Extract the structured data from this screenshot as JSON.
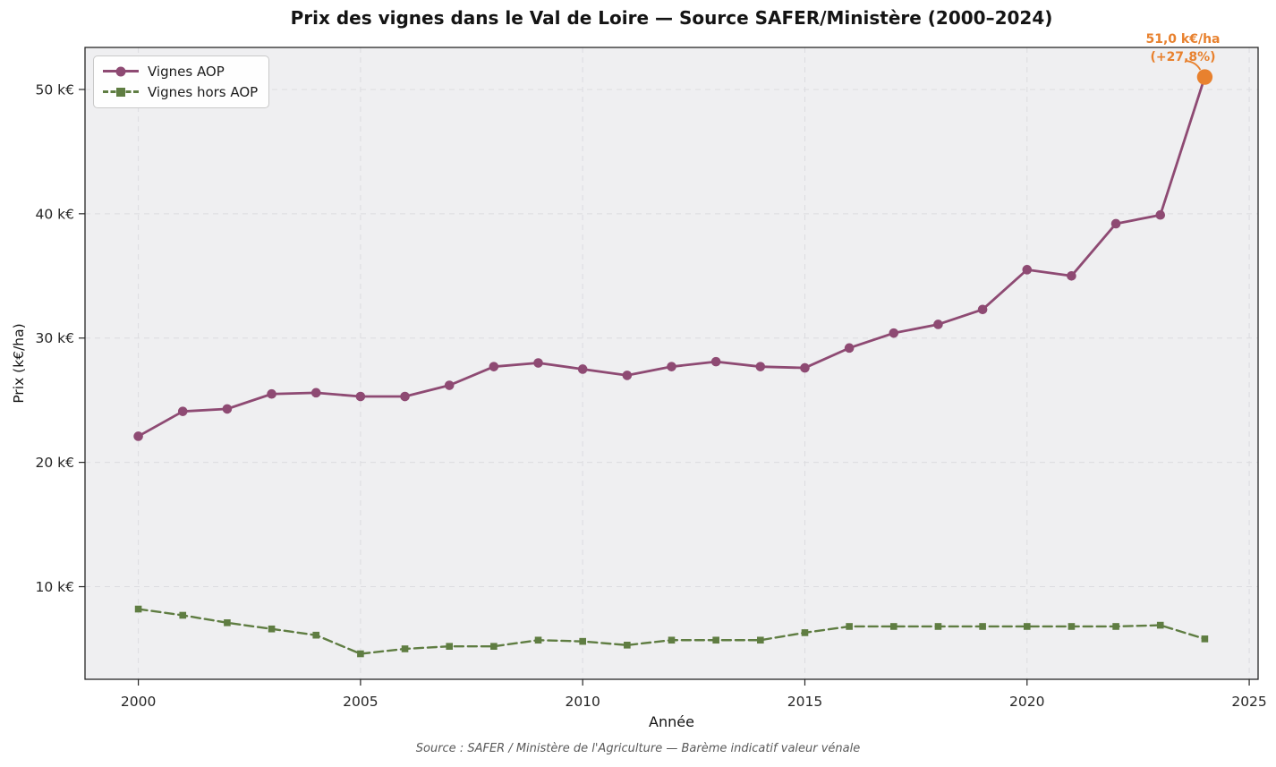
{
  "chart_data": {
    "type": "line",
    "title": "Prix des vignes dans le Val de Loire — Source SAFER/Ministère (2000–2024)",
    "xlabel": "Année",
    "ylabel": "Prix (k€/ha)",
    "x": [
      2000,
      2001,
      2002,
      2003,
      2004,
      2005,
      2006,
      2007,
      2008,
      2009,
      2010,
      2011,
      2012,
      2013,
      2014,
      2015,
      2016,
      2017,
      2018,
      2019,
      2020,
      2021,
      2022,
      2023,
      2024
    ],
    "series": [
      {
        "name": "Vignes AOP",
        "color": "#8e4a73",
        "marker": "circle",
        "linestyle": "solid",
        "values": [
          22.1,
          24.1,
          24.3,
          25.5,
          25.6,
          25.3,
          25.3,
          26.2,
          27.7,
          28.0,
          27.5,
          27.0,
          27.7,
          28.1,
          27.7,
          27.6,
          29.2,
          30.4,
          31.1,
          32.3,
          35.5,
          35.0,
          39.2,
          39.9,
          51.0
        ]
      },
      {
        "name": "Vignes hors AOP",
        "color": "#5f7d42",
        "marker": "square",
        "linestyle": "dashed",
        "values": [
          8.2,
          7.7,
          7.1,
          6.6,
          6.1,
          4.6,
          5.0,
          5.2,
          5.2,
          5.7,
          5.6,
          5.3,
          5.7,
          5.7,
          5.7,
          6.3,
          6.8,
          6.8,
          6.8,
          6.8,
          6.8,
          6.8,
          6.8,
          6.9,
          5.8
        ]
      }
    ],
    "highlight": {
      "x": 2024,
      "value": 51.0,
      "color": "#e8812e",
      "label_lines": [
        "51,0 k€/ha",
        "(+27,8%)"
      ]
    },
    "axes": {
      "xlim": [
        1998.8,
        2025.2
      ],
      "ylim": [
        2.55,
        53.38
      ],
      "xticks": [
        2000,
        2005,
        2010,
        2015,
        2020,
        2025
      ],
      "xtick_labels": [
        "2000",
        "2005",
        "2010",
        "2015",
        "2020",
        "2025"
      ],
      "yticks": [
        10,
        20,
        30,
        40,
        50
      ],
      "ytick_labels": [
        "10 k€",
        "20 k€",
        "30 k€",
        "40 k€",
        "50 k€"
      ],
      "grid": true
    },
    "legend": {
      "position": "upper left",
      "entries": [
        "Vignes AOP",
        "Vignes hors AOP"
      ]
    },
    "source_note": "Source : SAFER / Ministère de l'Agriculture — Barème indicatif valeur vénale"
  },
  "colors": {
    "plot_bg": "#efeff1",
    "grid": "#dcdce0",
    "spine": "#262626",
    "tick_text": "#262626",
    "title_text": "#141414",
    "footer_text": "#5a5a5a"
  }
}
